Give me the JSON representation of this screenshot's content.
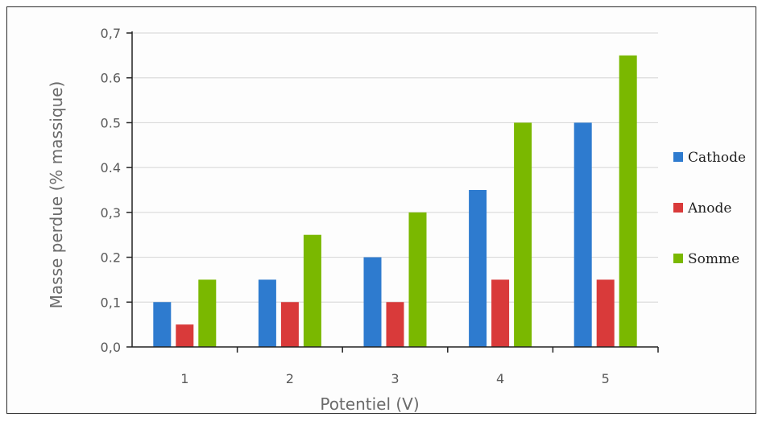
{
  "chart_data": {
    "type": "bar",
    "categories": [
      "1",
      "2",
      "3",
      "4",
      "5"
    ],
    "series": [
      {
        "name": "Cathode",
        "color": "#2e7bcf",
        "values": [
          0.1,
          0.15,
          0.2,
          0.35,
          0.5
        ]
      },
      {
        "name": "Anode",
        "color": "#d93a3a",
        "values": [
          0.05,
          0.1,
          0.1,
          0.15,
          0.15
        ]
      },
      {
        "name": "Somme",
        "color": "#7ab800",
        "values": [
          0.15,
          0.25,
          0.3,
          0.5,
          0.65
        ]
      }
    ],
    "xlabel": "Potentiel (V)",
    "ylabel": "Masse perdue (% massique)",
    "ylim": [
      0,
      0.7
    ],
    "yticks": [
      "0,0",
      "0,1",
      "0.2",
      "0,3",
      "0.4",
      "0.5",
      "0.6",
      "0,7"
    ],
    "grid": true,
    "legend_position": "right"
  }
}
